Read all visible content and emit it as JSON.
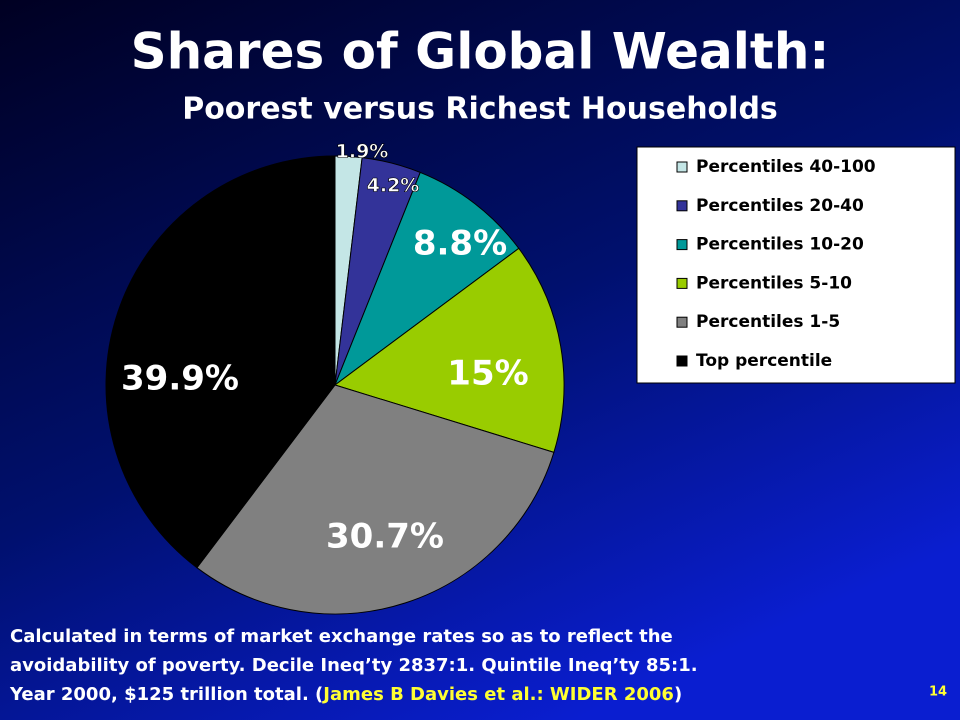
{
  "chart_data": {
    "type": "pie",
    "title": "Shares of Global Wealth:",
    "subtitle": "Poorest versus Richest Households",
    "categories": [
      "Percentiles 40-100",
      "Percentiles 20-40",
      "Percentiles 10-20",
      "Percentiles 5-10",
      "Percentiles 1-5",
      "Top percentile"
    ],
    "values": [
      1.9,
      4.2,
      8.8,
      15,
      30.7,
      39.9
    ],
    "value_labels": [
      "1.9%",
      "4.2%",
      "8.8%",
      "15%",
      "30.7%",
      "39.9%"
    ],
    "colors": [
      "#c4e6e6",
      "#333399",
      "#009999",
      "#99cc00",
      "#808080",
      "#000000"
    ]
  },
  "footnote": {
    "lines": [
      "Calculated in terms of market exchange rates so as to reflect the",
      "avoidability of poverty. Decile Ineq’ty 2837:1. Quintile Ineq’ty 85:1."
    ],
    "last_line": [
      "Year 2000, $125 trillion total. (",
      "James B Davies et al.: WIDER 2006",
      ")"
    ]
  },
  "page_number": "14"
}
